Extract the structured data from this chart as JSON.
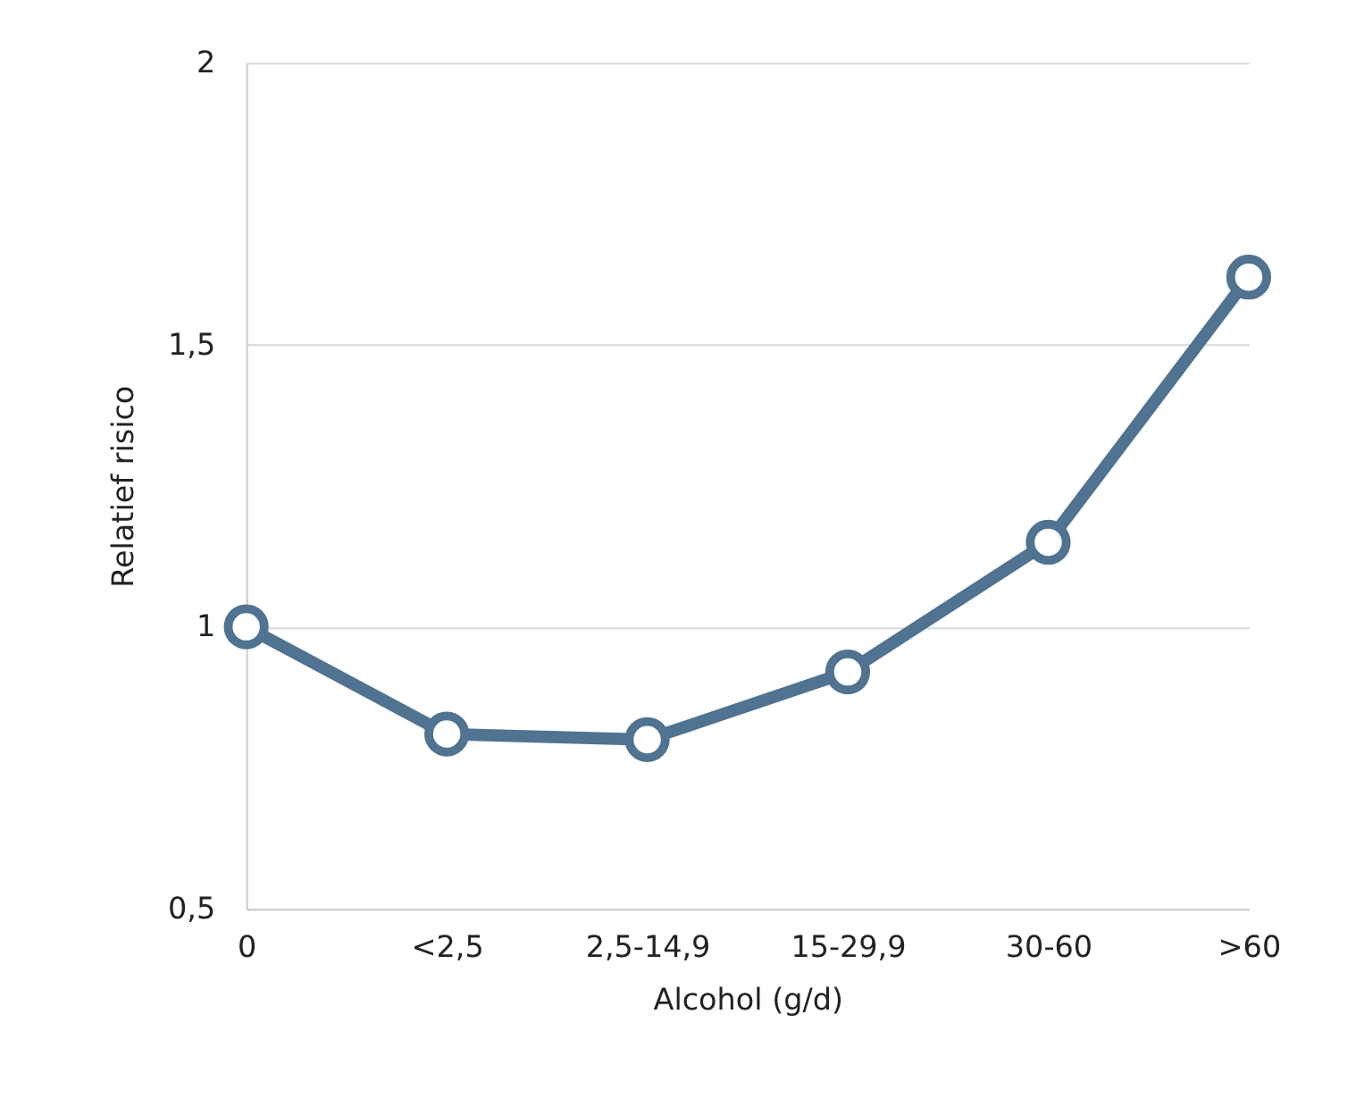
{
  "chart_data": {
    "type": "line",
    "xlabel": "Alcohol (g/d)",
    "ylabel": "Relatief risico",
    "categories": [
      "0",
      "<2,5",
      "2,5-14,9",
      "15-29,9",
      "30-60",
      ">60"
    ],
    "series": [
      {
        "color": "#4f7390",
        "values": [
          1.0,
          0.81,
          0.8,
          0.92,
          1.15,
          1.62
        ]
      }
    ],
    "ylim": [
      0.5,
      2
    ],
    "yticks": [
      {
        "value": 0.5,
        "label": "0,5"
      },
      1,
      {
        "value": 1.5,
        "label": "1,5"
      },
      2
    ],
    "grid": "y",
    "marker": "circle",
    "line_style": "solid"
  }
}
